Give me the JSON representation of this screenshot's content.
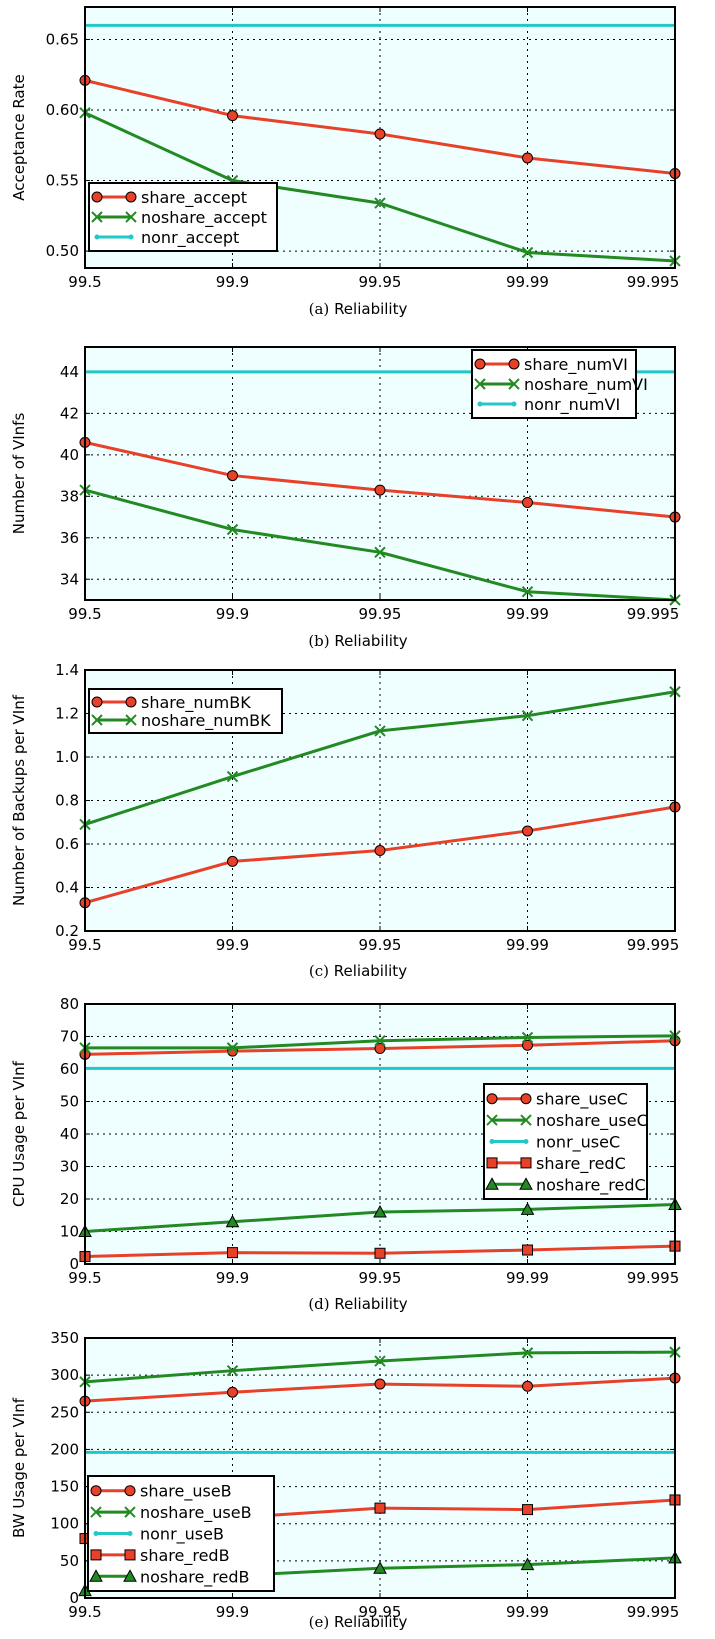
{
  "figure": {
    "captions": [
      {
        "label": "(a)",
        "text": "Reliability"
      },
      {
        "label": "(b)",
        "text": "Reliability"
      },
      {
        "label": "(c)",
        "text": "Reliability"
      },
      {
        "label": "(d)",
        "text": "Reliability"
      },
      {
        "label": "(e)",
        "text": "Reliability"
      }
    ]
  },
  "colors": {
    "plot_background": "#efffff",
    "red": "#e8412a",
    "green": "#238a23",
    "cyan": "#22c8c8"
  },
  "chart_data": [
    {
      "type": "line",
      "x": [
        "99.5",
        "99.9",
        "99.95",
        "99.99",
        "99.995"
      ],
      "ylabel": "Acceptance Rate",
      "ylim": [
        0.488,
        0.673
      ],
      "yticks": [
        "0.50",
        "0.55",
        "0.60",
        "0.65"
      ],
      "grid": true,
      "legend_position": "lower-left",
      "series": [
        {
          "name": "share_accept",
          "color": "red",
          "marker": "circle",
          "values": [
            0.621,
            0.596,
            0.583,
            0.566,
            0.555
          ]
        },
        {
          "name": "noshare_accept",
          "color": "green",
          "marker": "x",
          "values": [
            0.598,
            0.55,
            0.534,
            0.499,
            0.493
          ]
        },
        {
          "name": "nonr_accept",
          "color": "cyan",
          "marker": "none",
          "values": [
            0.66,
            0.66,
            0.66,
            0.66,
            0.66
          ]
        }
      ]
    },
    {
      "type": "line",
      "x": [
        "99.5",
        "99.9",
        "99.95",
        "99.99",
        "99.995"
      ],
      "ylabel": "Number of VInfs",
      "ylim": [
        33,
        45.2
      ],
      "yticks": [
        "34",
        "36",
        "38",
        "40",
        "42",
        "44"
      ],
      "grid": true,
      "legend_position": "upper-right",
      "series": [
        {
          "name": "share_numVI",
          "color": "red",
          "marker": "circle",
          "values": [
            40.6,
            39.0,
            38.3,
            37.7,
            37.0
          ]
        },
        {
          "name": "noshare_numVI",
          "color": "green",
          "marker": "x",
          "values": [
            38.3,
            36.4,
            35.3,
            33.4,
            33.0
          ]
        },
        {
          "name": "nonr_numVI",
          "color": "cyan",
          "marker": "none",
          "values": [
            44.0,
            44.0,
            44.0,
            44.0,
            44.0
          ]
        }
      ]
    },
    {
      "type": "line",
      "x": [
        "99.5",
        "99.9",
        "99.95",
        "99.99",
        "99.995"
      ],
      "ylabel": "Number of Backups per VInf",
      "ylim": [
        0.2,
        1.4
      ],
      "yticks": [
        "0.2",
        "0.4",
        "0.6",
        "0.8",
        "1.0",
        "1.2",
        "1.4"
      ],
      "grid": true,
      "legend_position": "upper-left",
      "series": [
        {
          "name": "share_numBK",
          "color": "red",
          "marker": "circle",
          "values": [
            0.33,
            0.52,
            0.57,
            0.66,
            0.77
          ]
        },
        {
          "name": "noshare_numBK",
          "color": "green",
          "marker": "x",
          "values": [
            0.69,
            0.91,
            1.12,
            1.19,
            1.3
          ]
        }
      ]
    },
    {
      "type": "line",
      "x": [
        "99.5",
        "99.9",
        "99.95",
        "99.99",
        "99.995"
      ],
      "ylabel": "CPU Usage per VInf",
      "ylim": [
        0,
        80
      ],
      "yticks": [
        "0",
        "10",
        "20",
        "30",
        "40",
        "50",
        "60",
        "70",
        "80"
      ],
      "grid": true,
      "legend_position": "right",
      "series": [
        {
          "name": "share_useC",
          "color": "red",
          "marker": "circle",
          "values": [
            64.5,
            65.5,
            66.3,
            67.3,
            68.7
          ]
        },
        {
          "name": "noshare_useC",
          "color": "green",
          "marker": "x",
          "values": [
            66.5,
            66.5,
            68.7,
            69.7,
            70.2
          ]
        },
        {
          "name": "nonr_useC",
          "color": "cyan",
          "marker": "none",
          "values": [
            60.2,
            60.2,
            60.2,
            60.2,
            60.2
          ]
        },
        {
          "name": "share_redC",
          "color": "red",
          "marker": "square",
          "values": [
            2.3,
            3.5,
            3.3,
            4.3,
            5.5
          ]
        },
        {
          "name": "noshare_redC",
          "color": "green",
          "marker": "triangle",
          "values": [
            10.0,
            13.0,
            16.0,
            16.8,
            18.3
          ]
        }
      ]
    },
    {
      "type": "line",
      "x": [
        "99.5",
        "99.9",
        "99.95",
        "99.99",
        "99.995"
      ],
      "ylabel": "BW Usage per VInf",
      "ylim": [
        0,
        350
      ],
      "yticks": [
        "0",
        "50",
        "100",
        "150",
        "200",
        "250",
        "300",
        "350"
      ],
      "grid": true,
      "legend_position": "lower-left",
      "series": [
        {
          "name": "share_useB",
          "color": "red",
          "marker": "circle",
          "values": [
            265,
            277,
            288,
            285,
            296
          ]
        },
        {
          "name": "noshare_useB",
          "color": "green",
          "marker": "x",
          "values": [
            291,
            306,
            319,
            330,
            331
          ]
        },
        {
          "name": "nonr_useB",
          "color": "cyan",
          "marker": "none",
          "values": [
            196,
            196,
            196,
            196,
            196
          ]
        },
        {
          "name": "share_redB",
          "color": "red",
          "marker": "square",
          "values": [
            80,
            108,
            121,
            119,
            132
          ]
        },
        {
          "name": "noshare_redB",
          "color": "green",
          "marker": "triangle",
          "values": [
            10,
            30,
            40,
            45,
            54
          ]
        }
      ]
    }
  ]
}
